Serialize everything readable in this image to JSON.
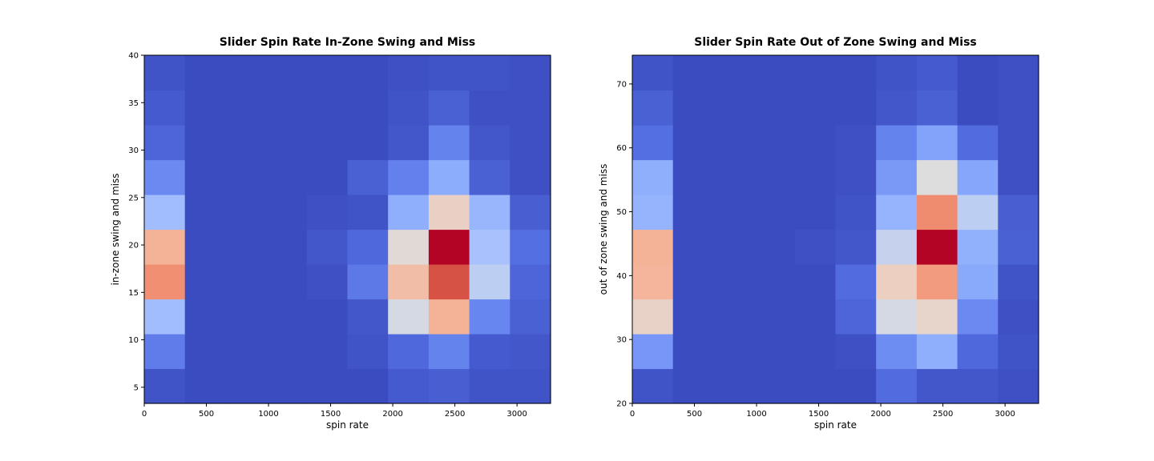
{
  "chart_data": [
    {
      "type": "heatmap",
      "title": "Slider Spin Rate In-Zone Swing and Miss",
      "xlabel": "spin rate",
      "ylabel": "in-zone swing and miss",
      "xlim": [
        0,
        3270
      ],
      "ylim": [
        3.3,
        40
      ],
      "xticks": [
        "0",
        "500",
        "1000",
        "1500",
        "2000",
        "2500",
        "3000"
      ],
      "yticks": [
        "5",
        "10",
        "15",
        "20",
        "25",
        "30",
        "35",
        "40"
      ],
      "colormap": "coolwarm",
      "value_range": [
        0,
        100
      ],
      "bins_x": 10,
      "bins_y": 10,
      "note_rows": "row 0 is the bottom bin, columns left to right",
      "values": [
        [
          2,
          0,
          0,
          0,
          0,
          0,
          4,
          5,
          2,
          2
        ],
        [
          14,
          0,
          0,
          0,
          0,
          2,
          8,
          16,
          4,
          3
        ],
        [
          36,
          0,
          0,
          0,
          0,
          3,
          48,
          67,
          17,
          6
        ],
        [
          76,
          0,
          0,
          0,
          1,
          13,
          64,
          90,
          43,
          7
        ],
        [
          67,
          0,
          0,
          0,
          3,
          8,
          52,
          100,
          38,
          10
        ],
        [
          36,
          0,
          0,
          0,
          1,
          2,
          30,
          57,
          33,
          5
        ],
        [
          18,
          0,
          0,
          0,
          0,
          6,
          15,
          29,
          6,
          1
        ],
        [
          7,
          0,
          0,
          0,
          0,
          0,
          3,
          16,
          3,
          1
        ],
        [
          4,
          0,
          0,
          0,
          0,
          0,
          2,
          6,
          1,
          1
        ],
        [
          2,
          0,
          0,
          0,
          0,
          0,
          1,
          2,
          2,
          1
        ]
      ]
    },
    {
      "type": "heatmap",
      "title": "Slider Spin Rate Out of Zone Swing and Miss",
      "xlabel": "spin rate",
      "ylabel": "out of zone swing and miss",
      "xlim": [
        0,
        3270
      ],
      "ylim": [
        20,
        74.5
      ],
      "xticks": [
        "0",
        "500",
        "1000",
        "1500",
        "2000",
        "2500",
        "3000"
      ],
      "yticks": [
        "20",
        "30",
        "40",
        "50",
        "60",
        "70"
      ],
      "colormap": "coolwarm",
      "value_range": [
        0,
        100
      ],
      "bins_x": 10,
      "bins_y": 10,
      "note_rows": "row 0 is the bottom bin, columns left to right",
      "values": [
        [
          2,
          0,
          0,
          0,
          0,
          0,
          9,
          3,
          3,
          1
        ],
        [
          22,
          0,
          0,
          0,
          0,
          1,
          19,
          30,
          8,
          2
        ],
        [
          56,
          0,
          0,
          0,
          0,
          7,
          48,
          55,
          18,
          1
        ],
        [
          66,
          0,
          0,
          0,
          0,
          9,
          58,
          73,
          28,
          2
        ],
        [
          67,
          0,
          0,
          0,
          1,
          3,
          45,
          100,
          31,
          6
        ],
        [
          32,
          0,
          0,
          0,
          0,
          2,
          32,
          77,
          43,
          5
        ],
        [
          30,
          0,
          0,
          0,
          0,
          1,
          23,
          50,
          27,
          1
        ],
        [
          10,
          0,
          0,
          0,
          0,
          1,
          16,
          26,
          9,
          1
        ],
        [
          6,
          0,
          0,
          0,
          0,
          0,
          3,
          6,
          0,
          1
        ],
        [
          2,
          0,
          0,
          0,
          0,
          0,
          2,
          4,
          0,
          1
        ]
      ]
    }
  ]
}
